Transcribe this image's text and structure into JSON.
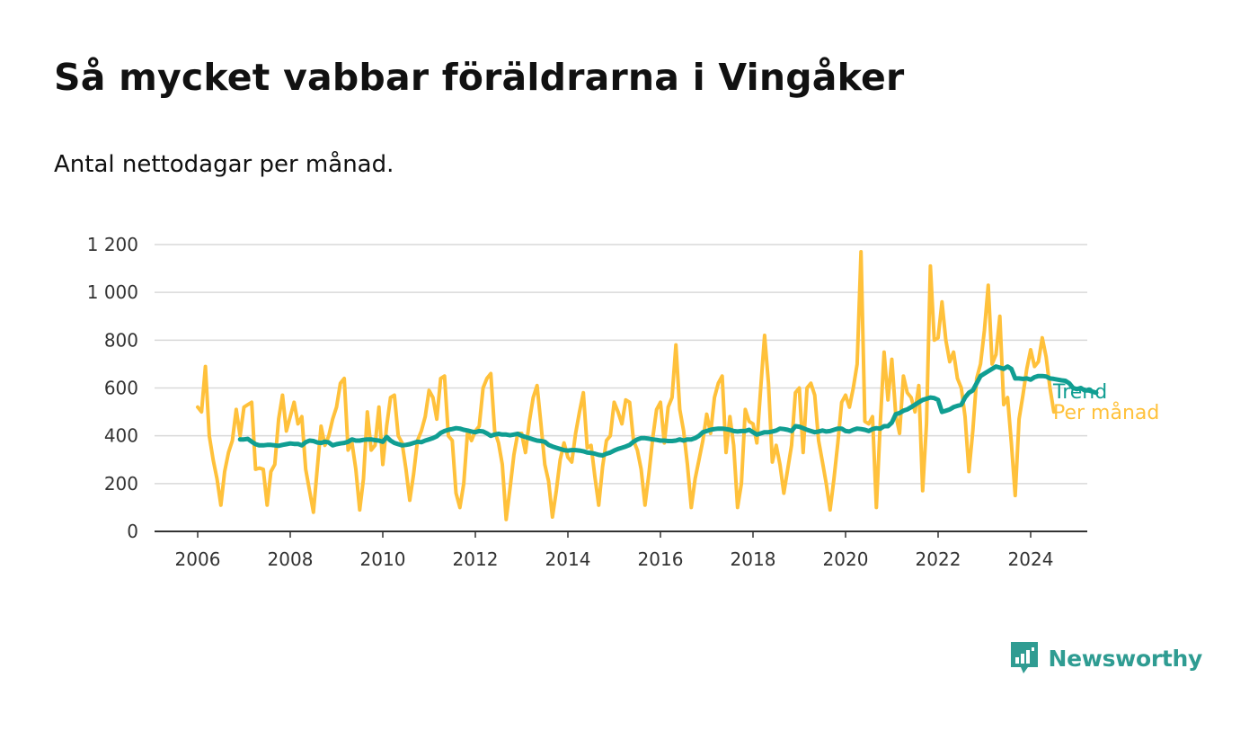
{
  "title": "Så mycket vabbar föräldrarna i Vingåker",
  "subtitle": "Antal nettodagar per månad.",
  "logo": {
    "text": "Newsworthy",
    "icon": "bar-chart-badge-icon",
    "color": "#2f9c92"
  },
  "chart_data": {
    "type": "line",
    "title": "Så mycket vabbar föräldrarna i Vingåker",
    "subtitle": "Antal nettodagar per månad.",
    "xlabel": "",
    "ylabel": "",
    "xlim": [
      2005.5,
      2025.3
    ],
    "ylim": [
      0,
      1200
    ],
    "y_ticks": [
      0,
      200,
      400,
      600,
      800,
      1000,
      1200
    ],
    "y_tick_labels": [
      "0",
      "200",
      "400",
      "600",
      "800",
      "1 000",
      "1 200"
    ],
    "x_ticks": [
      2006,
      2008,
      2010,
      2012,
      2014,
      2016,
      2018,
      2020,
      2022,
      2024
    ],
    "x_tick_labels": [
      "2006",
      "2008",
      "2010",
      "2012",
      "2014",
      "2016",
      "2018",
      "2020",
      "2022",
      "2024"
    ],
    "grid": true,
    "legend": "inline labels at right end of lines",
    "series": [
      {
        "name": "Per månad",
        "color": "#ffc13b",
        "start": "2006-01",
        "values": [
          520,
          500,
          690,
          400,
          300,
          220,
          110,
          250,
          330,
          380,
          510,
          400,
          520,
          530,
          540,
          260,
          265,
          260,
          110,
          250,
          280,
          470,
          570,
          420,
          480,
          540,
          450,
          480,
          260,
          170,
          80,
          260,
          440,
          360,
          400,
          470,
          520,
          620,
          640,
          340,
          370,
          260,
          90,
          220,
          500,
          340,
          360,
          520,
          280,
          440,
          560,
          570,
          400,
          370,
          260,
          130,
          240,
          380,
          420,
          480,
          590,
          560,
          470,
          640,
          650,
          400,
          380,
          160,
          100,
          200,
          420,
          380,
          420,
          440,
          600,
          640,
          660,
          420,
          370,
          280,
          50,
          180,
          320,
          410,
          410,
          330,
          460,
          560,
          610,
          450,
          280,
          210,
          60,
          170,
          300,
          370,
          310,
          290,
          410,
          500,
          580,
          350,
          360,
          230,
          110,
          270,
          380,
          400,
          540,
          500,
          450,
          550,
          540,
          380,
          340,
          260,
          110,
          240,
          390,
          510,
          540,
          370,
          520,
          560,
          780,
          510,
          420,
          280,
          100,
          220,
          300,
          380,
          490,
          410,
          560,
          620,
          650,
          330,
          480,
          360,
          100,
          200,
          510,
          460,
          450,
          370,
          600,
          820,
          620,
          290,
          360,
          280,
          160,
          260,
          360,
          580,
          600,
          330,
          600,
          620,
          570,
          380,
          290,
          200,
          90,
          220,
          370,
          540,
          570,
          520,
          600,
          700,
          1170,
          460,
          450,
          480,
          100,
          450,
          750,
          550,
          720,
          490,
          410,
          650,
          580,
          560,
          500,
          610,
          170,
          450,
          1110,
          800,
          810,
          960,
          800,
          710,
          750,
          640,
          600,
          480,
          250,
          420,
          640,
          700,
          840,
          1030,
          700,
          740,
          900,
          530,
          560,
          370,
          150,
          470,
          570,
          680,
          760,
          690,
          710,
          810,
          730,
          600,
          500
        ]
      },
      {
        "name": "Trend",
        "color": "#109e92",
        "start": "2006-12",
        "values": [
          385,
          385,
          387,
          375,
          365,
          360,
          360,
          362,
          362,
          360,
          358,
          362,
          365,
          368,
          366,
          366,
          360,
          373,
          380,
          378,
          372,
          370,
          375,
          372,
          360,
          365,
          368,
          370,
          375,
          385,
          380,
          380,
          383,
          385,
          385,
          382,
          380,
          375,
          395,
          380,
          370,
          365,
          360,
          362,
          365,
          370,
          375,
          373,
          380,
          385,
          390,
          398,
          412,
          420,
          425,
          428,
          432,
          430,
          425,
          422,
          418,
          415,
          420,
          418,
          410,
          400,
          405,
          408,
          405,
          405,
          402,
          405,
          408,
          400,
          395,
          390,
          385,
          380,
          378,
          375,
          362,
          355,
          350,
          345,
          340,
          338,
          340,
          340,
          338,
          335,
          330,
          328,
          325,
          320,
          318,
          325,
          330,
          338,
          345,
          350,
          355,
          362,
          375,
          385,
          390,
          390,
          388,
          385,
          383,
          380,
          380,
          378,
          378,
          380,
          385,
          380,
          385,
          385,
          390,
          400,
          415,
          420,
          425,
          428,
          430,
          430,
          428,
          425,
          420,
          418,
          420,
          420,
          425,
          415,
          405,
          410,
          415,
          415,
          418,
          422,
          430,
          428,
          425,
          420,
          440,
          438,
          432,
          425,
          420,
          415,
          418,
          422,
          418,
          420,
          425,
          430,
          430,
          420,
          418,
          425,
          430,
          428,
          425,
          420,
          428,
          432,
          430,
          440,
          440,
          455,
          490,
          495,
          505,
          510,
          520,
          530,
          540,
          550,
          555,
          560,
          558,
          550,
          500,
          505,
          510,
          520,
          525,
          530,
          560,
          580,
          590,
          620,
          650,
          660,
          670,
          680,
          690,
          685,
          680,
          690,
          680,
          640,
          640,
          638,
          640,
          635,
          645,
          650,
          650,
          648,
          640,
          638,
          635,
          632,
          630,
          620,
          600,
          595,
          600,
          590,
          590,
          585,
          580
        ]
      }
    ]
  }
}
